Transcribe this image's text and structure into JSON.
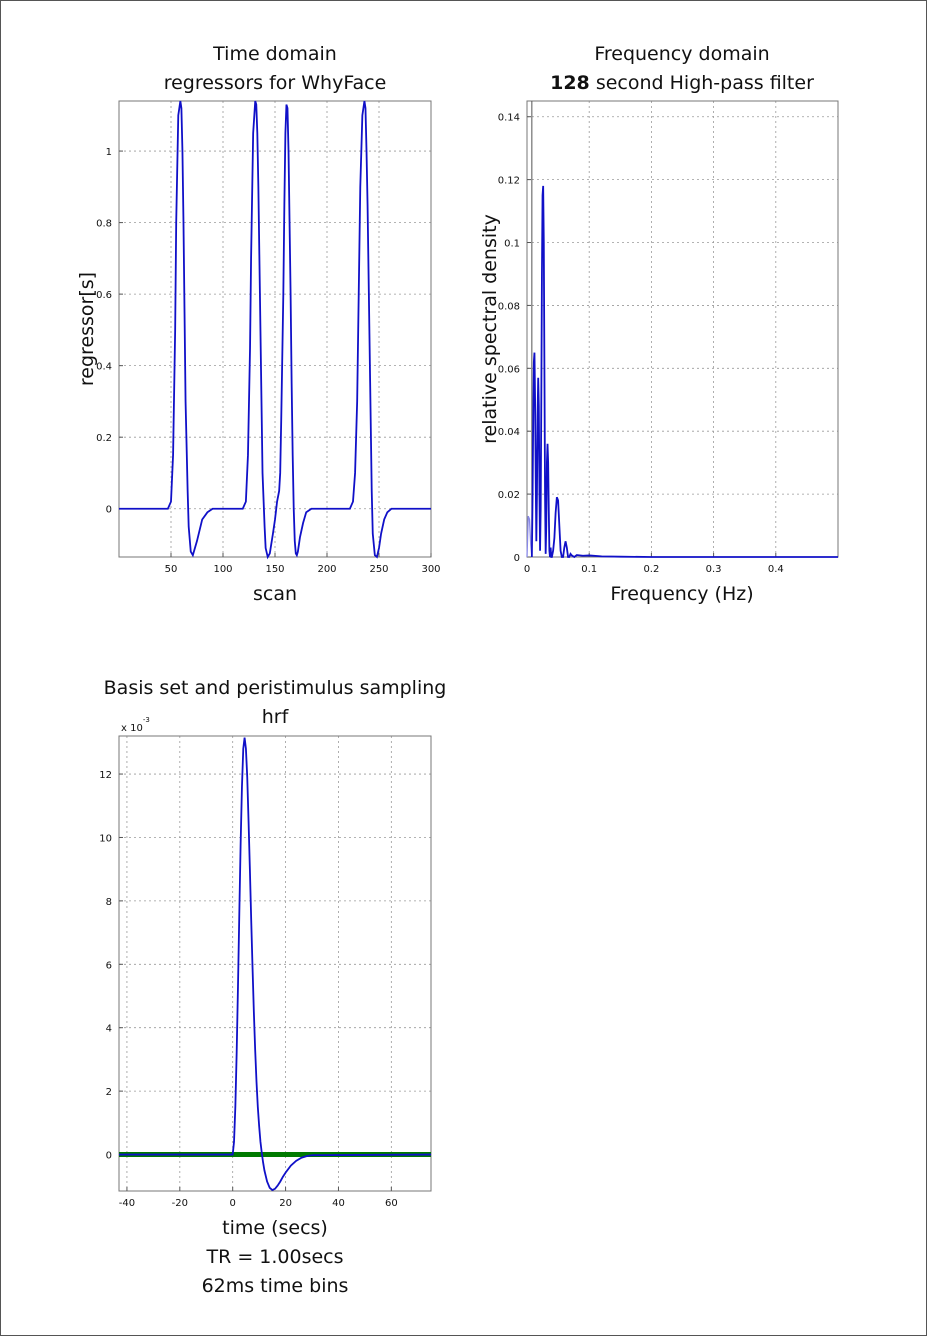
{
  "chart_data": [
    {
      "type": "line",
      "title": "Time domain",
      "subtitle": "regressors for WhyFace",
      "xlabel": "scan",
      "ylabel": "regressor[s]",
      "xlim": [
        0,
        300
      ],
      "ylim": [
        -0.135,
        1.14
      ],
      "xticks": [
        50,
        100,
        150,
        200,
        250,
        300
      ],
      "yticks": [
        0,
        0.2,
        0.4,
        0.6,
        0.8,
        1
      ],
      "grid": true,
      "color": "#1010c8",
      "series": [
        {
          "x": [
            0,
            47,
            50,
            52,
            54,
            55,
            57,
            59,
            60,
            61,
            62,
            63,
            64,
            66,
            67,
            69,
            71,
            75,
            80,
            85,
            90,
            95,
            100,
            110,
            119,
            122,
            124,
            126,
            127,
            129,
            131,
            132,
            133,
            134,
            135,
            136,
            137,
            138,
            140,
            141,
            143,
            145,
            148,
            150,
            152,
            154,
            155,
            156,
            158,
            159,
            160,
            161,
            162,
            163,
            164,
            165,
            166,
            167,
            168,
            169,
            170,
            171,
            172,
            174,
            177,
            180,
            185,
            190,
            195,
            200,
            210,
            222,
            225,
            227,
            229,
            230,
            232,
            234,
            236,
            237,
            238,
            239,
            240,
            241,
            242,
            243,
            244,
            246,
            248,
            250,
            252,
            255,
            258,
            262,
            268,
            275,
            285,
            300
          ],
          "y": [
            0,
            0,
            0.02,
            0.15,
            0.5,
            0.8,
            1.1,
            1.14,
            1.12,
            1.0,
            0.8,
            0.55,
            0.3,
            0.05,
            -0.05,
            -0.12,
            -0.13,
            -0.09,
            -0.03,
            -0.01,
            0,
            0,
            0,
            0,
            0,
            0.02,
            0.15,
            0.45,
            0.7,
            1.05,
            1.14,
            1.13,
            1.05,
            0.9,
            0.7,
            0.5,
            0.3,
            0.1,
            -0.05,
            -0.11,
            -0.135,
            -0.125,
            -0.07,
            -0.03,
            0.02,
            0.05,
            0.1,
            0.25,
            0.6,
            0.85,
            1.05,
            1.13,
            1.12,
            1.0,
            0.8,
            0.6,
            0.35,
            0.15,
            0.0,
            -0.09,
            -0.125,
            -0.13,
            -0.12,
            -0.08,
            -0.04,
            -0.01,
            0,
            0,
            0,
            0,
            0,
            0,
            0.02,
            0.1,
            0.3,
            0.5,
            0.9,
            1.1,
            1.14,
            1.12,
            1.0,
            0.85,
            0.65,
            0.45,
            0.25,
            0.05,
            -0.07,
            -0.13,
            -0.135,
            -0.11,
            -0.07,
            -0.03,
            -0.01,
            0,
            0,
            0,
            0,
            0
          ]
        }
      ]
    },
    {
      "type": "line",
      "title": "Frequency domain",
      "subtitle_bold": "128",
      "subtitle_rest": " second High-pass filter",
      "xlabel": "Frequency (Hz)",
      "ylabel": "relative spectral density",
      "xlim": [
        0,
        0.5
      ],
      "ylim": [
        0,
        0.145
      ],
      "xticks": [
        0,
        0.1,
        0.2,
        0.3,
        0.4
      ],
      "yticks": [
        0,
        0.02,
        0.04,
        0.06,
        0.08,
        0.1,
        0.12,
        0.14
      ],
      "grid": true,
      "color": "#1010c8",
      "filtered_color": "#8888e8",
      "cutoff_hz": 0.0078,
      "filtered_series": {
        "x": [
          0.0,
          0.002,
          0.004,
          0.006,
          0.0078
        ],
        "y": [
          0,
          0.013,
          0.012,
          0.004,
          0
        ]
      },
      "series": [
        {
          "x": [
            0.0078,
            0.009,
            0.01,
            0.011,
            0.012,
            0.013,
            0.014,
            0.015,
            0.016,
            0.017,
            0.018,
            0.019,
            0.02,
            0.021,
            0.022,
            0.023,
            0.024,
            0.025,
            0.026,
            0.027,
            0.028,
            0.029,
            0.03,
            0.031,
            0.032,
            0.033,
            0.034,
            0.035,
            0.036,
            0.037,
            0.038,
            0.039,
            0.04,
            0.041,
            0.042,
            0.044,
            0.046,
            0.048,
            0.05,
            0.052,
            0.054,
            0.056,
            0.058,
            0.06,
            0.062,
            0.064,
            0.066,
            0.068,
            0.07,
            0.072,
            0.076,
            0.08,
            0.09,
            0.1,
            0.12,
            0.15,
            0.2,
            0.25,
            0.3,
            0.4,
            0.5
          ],
          "y": [
            0,
            0.02,
            0.045,
            0.062,
            0.065,
            0.05,
            0.025,
            0.005,
            0.02,
            0.045,
            0.057,
            0.048,
            0.02,
            0.002,
            0.015,
            0.05,
            0.09,
            0.115,
            0.118,
            0.1,
            0.06,
            0.02,
            0.001,
            0.01,
            0.03,
            0.036,
            0.03,
            0.015,
            0.002,
            0.0,
            0.003,
            0.0,
            0.0,
            0.001,
            0.002,
            0.006,
            0.014,
            0.019,
            0.018,
            0.01,
            0.002,
            0.0,
            0.0,
            0.003,
            0.005,
            0.003,
            0.0,
            0.0,
            0.001,
            0.0005,
            0.0,
            0.0006,
            0.0004,
            0.0005,
            0.0002,
            0.0001,
            0.0,
            0.0,
            0.0,
            0.0,
            0.0
          ]
        }
      ]
    },
    {
      "type": "line",
      "title": "Basis set and peristimulus sampling",
      "subtitle": "hrf",
      "xlabel": "time (secs)",
      "xlabel2": "TR = 1.00secs",
      "xlabel3": "62ms time bins",
      "yscale_label": "x 10",
      "yscale_exp": "-3",
      "xlim": [
        -43,
        75
      ],
      "ylim": [
        -1.15,
        13.2
      ],
      "xticks": [
        -40,
        -20,
        0,
        20,
        40,
        60
      ],
      "yticks": [
        0,
        2,
        4,
        6,
        8,
        10,
        12
      ],
      "grid": true,
      "color": "#1010c8",
      "sampling_color": "#007a00",
      "sampling_y": 0,
      "series": [
        {
          "name": "hrf",
          "x": [
            -43,
            0,
            0.5,
            1,
            1.5,
            2,
            2.5,
            3,
            3.5,
            4,
            4.5,
            5,
            5.5,
            6,
            6.5,
            7,
            7.5,
            8,
            8.5,
            9,
            9.5,
            10,
            10.5,
            11,
            11.5,
            12,
            13,
            14,
            15,
            16,
            17,
            18,
            19,
            20,
            22,
            24,
            26,
            28,
            30,
            75
          ],
          "y": [
            0,
            0,
            0.4,
            1.5,
            3.2,
            5.3,
            7.6,
            9.8,
            11.6,
            12.8,
            13.15,
            12.8,
            11.9,
            10.5,
            9.0,
            7.4,
            5.9,
            4.5,
            3.3,
            2.3,
            1.5,
            0.9,
            0.4,
            0.05,
            -0.25,
            -0.5,
            -0.85,
            -1.05,
            -1.12,
            -1.08,
            -0.98,
            -0.85,
            -0.7,
            -0.57,
            -0.35,
            -0.2,
            -0.1,
            -0.05,
            -0.02,
            0
          ]
        }
      ]
    }
  ]
}
